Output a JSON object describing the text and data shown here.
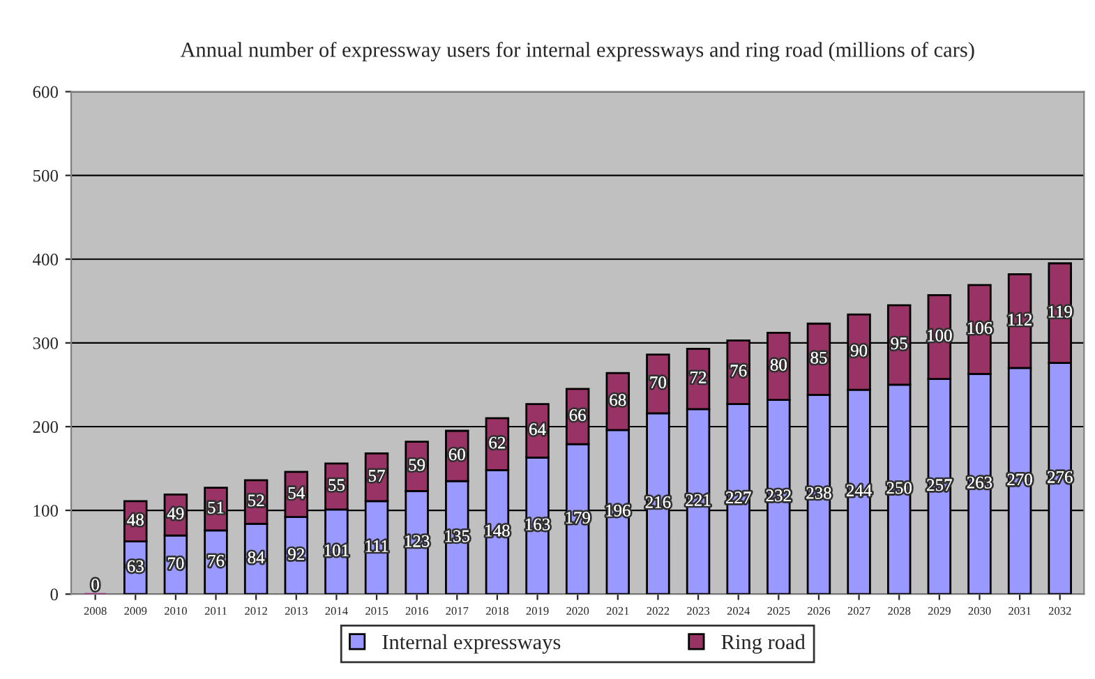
{
  "chart_data": {
    "type": "bar",
    "title": "Annual number of expressway users for internal expressways and ring road (millions of cars)",
    "categories": [
      "2008",
      "2009",
      "2010",
      "2011",
      "2012",
      "2013",
      "2014",
      "2015",
      "2016",
      "2017",
      "2018",
      "2019",
      "2020",
      "2021",
      "2022",
      "2023",
      "2024",
      "2025",
      "2026",
      "2027",
      "2028",
      "2029",
      "2030",
      "2031",
      "2032"
    ],
    "stacked": true,
    "series": [
      {
        "name": "Internal expressways",
        "color": "#9999ff",
        "values": [
          0,
          63,
          70,
          76,
          84,
          92,
          101,
          111,
          123,
          135,
          148,
          163,
          179,
          196,
          216,
          221,
          227,
          232,
          238,
          244,
          250,
          257,
          263,
          270,
          276
        ],
        "value_labels": [
          "0",
          "63",
          "70",
          "76",
          "84",
          "92",
          "101",
          "111",
          "123",
          "135",
          "148",
          "163",
          "179",
          "196",
          "216",
          "221",
          "227",
          "232",
          "238",
          "244",
          "250",
          "257",
          "263",
          "270",
          "276"
        ]
      },
      {
        "name": "Ring road",
        "color": "#993366",
        "values": [
          0,
          48,
          49,
          51,
          52,
          54,
          55,
          57,
          59,
          60,
          62,
          64,
          66,
          68,
          70,
          72,
          76,
          80,
          85,
          90,
          95,
          100,
          106,
          112,
          119
        ],
        "value_labels": [
          null,
          "48",
          "49",
          "51",
          "52",
          "54",
          "55",
          "57",
          "59",
          "60",
          "62",
          "64",
          "66",
          "68",
          "70",
          "72",
          "76",
          "80",
          "85",
          "90",
          "95",
          "100",
          "106",
          "112",
          "119"
        ]
      }
    ],
    "ylim": [
      0,
      600
    ],
    "yticks": [
      0,
      100,
      200,
      300,
      400,
      500,
      600
    ],
    "grid": "y",
    "legend": "bottom"
  }
}
